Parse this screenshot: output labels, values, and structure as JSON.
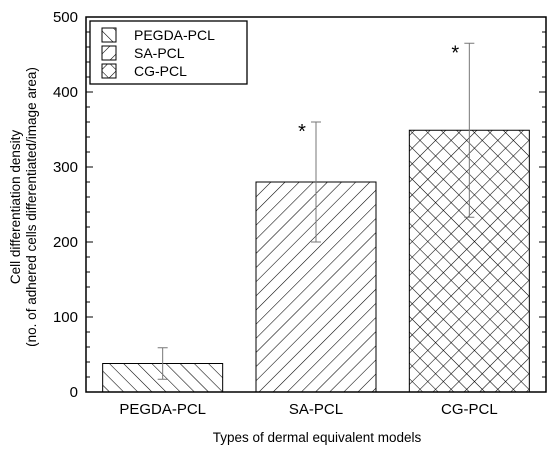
{
  "chart_data": {
    "type": "bar",
    "categories": [
      "PEGDA-PCL",
      "SA-PCL",
      "CG-PCL"
    ],
    "values": [
      38,
      280,
      349
    ],
    "errors_upper": [
      59,
      360,
      465
    ],
    "errors_lower": [
      17,
      200,
      233
    ],
    "significance": [
      "",
      "*",
      "*"
    ],
    "patterns": [
      "back-diagonal",
      "forward-diagonal",
      "crosshatch"
    ],
    "xlabel": "Types of dermal equivalent models",
    "ylabel_line1": "Cell differentiation density",
    "ylabel_line2": "(no. of adhered cells differentiated/image area)",
    "ylim": [
      0,
      500
    ],
    "yticks": [
      "0",
      "100",
      "200",
      "300",
      "400",
      "500"
    ],
    "legend": {
      "placement": "top-left",
      "entries": [
        "PEGDA-PCL",
        "SA-PCL",
        "CG-PCL"
      ]
    },
    "grid": false
  }
}
